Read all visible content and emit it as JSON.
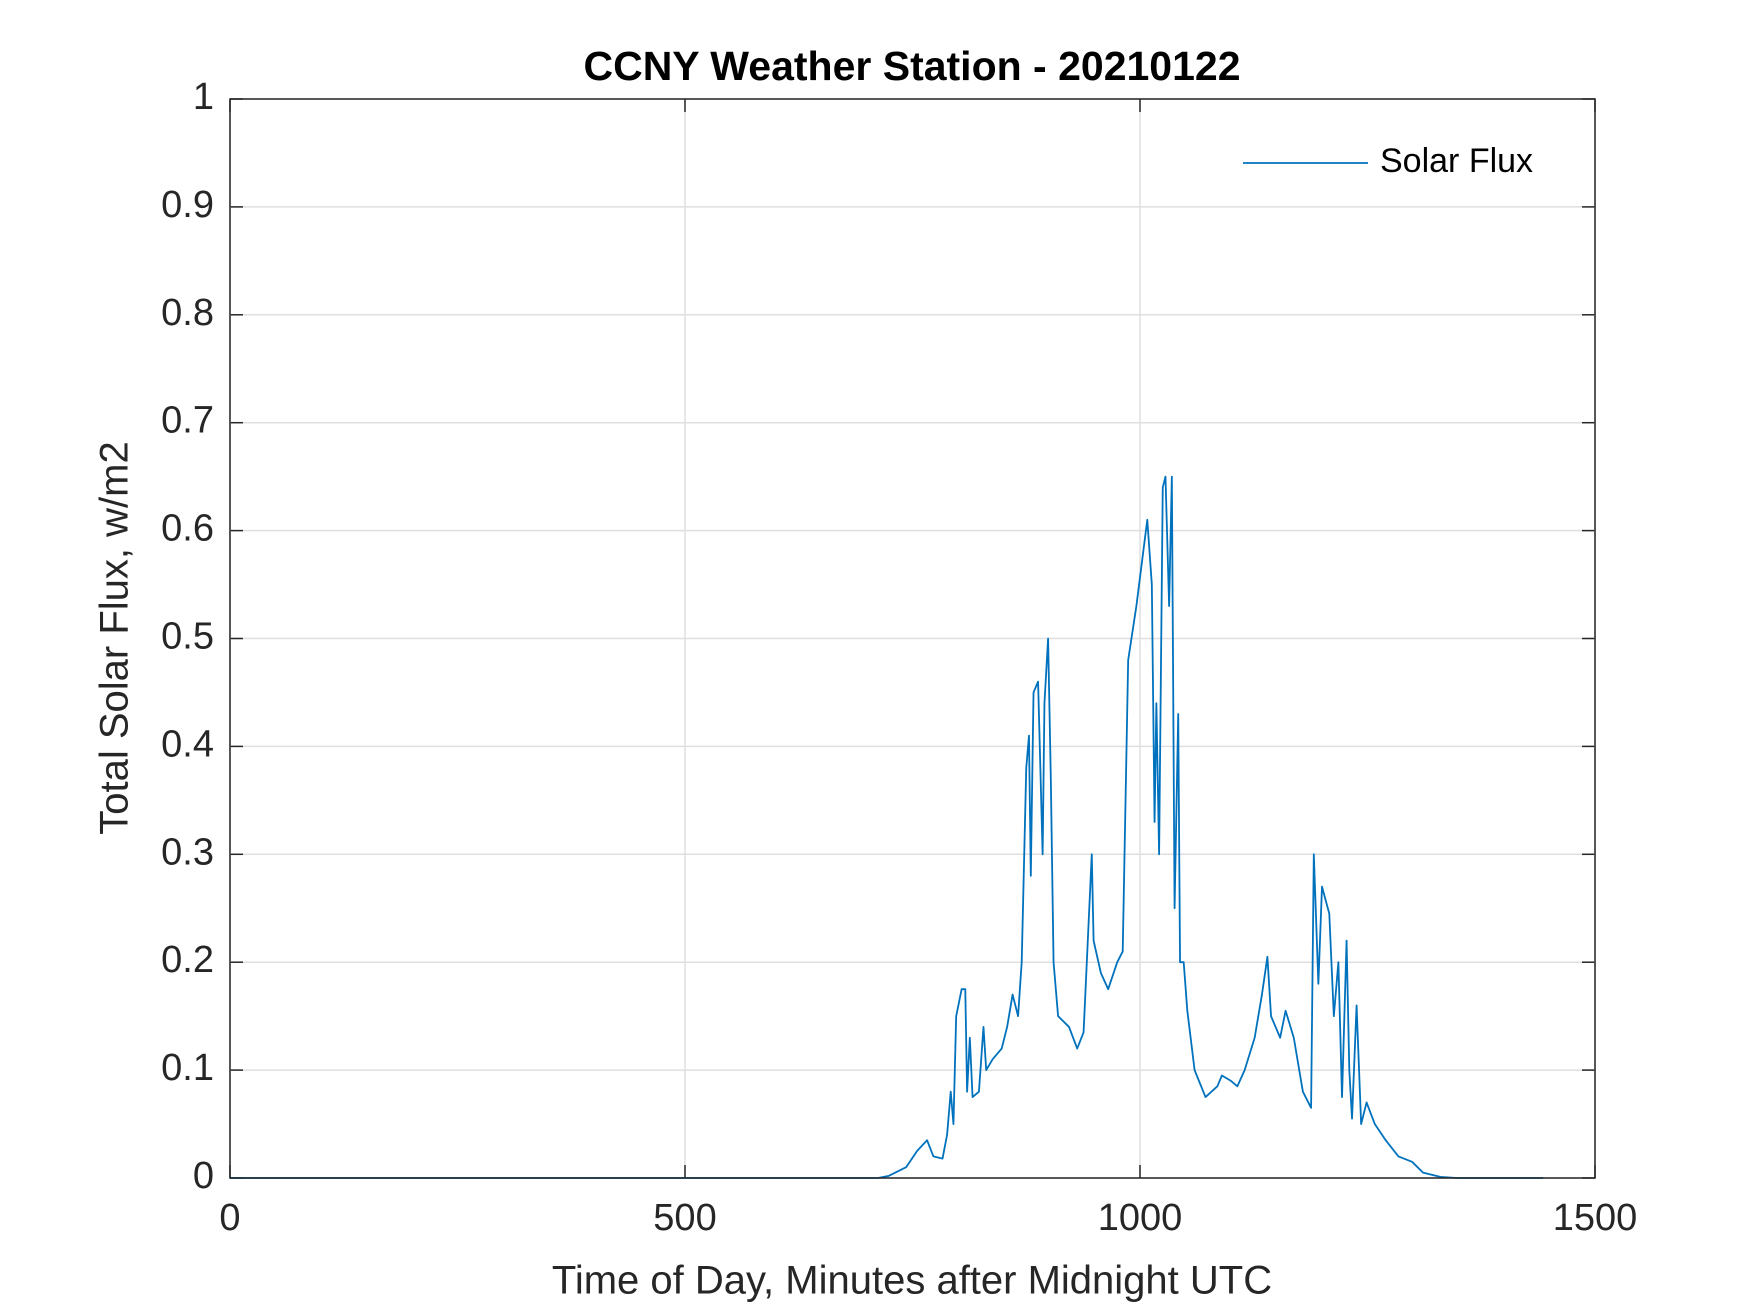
{
  "chart_data": {
    "type": "line",
    "title": "CCNY Weather Station - 20210122",
    "xlabel": "Time of Day, Minutes after Midnight UTC",
    "ylabel": "Total Solar Flux, w/m2",
    "xlim": [
      0,
      1500
    ],
    "xticks": [
      0,
      500,
      1000,
      1500
    ],
    "ylim": [
      0,
      1
    ],
    "yticks": [
      0,
      0.1,
      0.2,
      0.3,
      0.4,
      0.5,
      0.6,
      0.7,
      0.8,
      0.9,
      1
    ],
    "grid": true,
    "legend": "upper right",
    "x": [
      0,
      712,
      724,
      743,
      755,
      766,
      773,
      783,
      788,
      792,
      795,
      798,
      804,
      808,
      810,
      813,
      816,
      823,
      828,
      831,
      838,
      848,
      854,
      860,
      866,
      870,
      875,
      878,
      880,
      883,
      888,
      893,
      895,
      899,
      902,
      905,
      910,
      922,
      931,
      938,
      947,
      949,
      957,
      965,
      975,
      981,
      987,
      996,
      1002,
      1008,
      1013,
      1016,
      1018,
      1021,
      1025,
      1028,
      1032,
      1035,
      1038,
      1042,
      1044,
      1048,
      1052,
      1060,
      1072,
      1085,
      1090,
      1100,
      1107,
      1115,
      1126,
      1134,
      1140,
      1144,
      1154,
      1160,
      1169,
      1179,
      1188,
      1191,
      1196,
      1200,
      1208,
      1213,
      1218,
      1222,
      1227,
      1230,
      1233,
      1238,
      1243,
      1249,
      1258,
      1270,
      1284,
      1299,
      1311,
      1330,
      1348,
      1443
    ],
    "series": [
      {
        "name": "Solar Flux",
        "color": "#0072bd",
        "values": [
          0,
          0,
          0.002,
          0.01,
          0.025,
          0.035,
          0.02,
          0.018,
          0.04,
          0.08,
          0.05,
          0.15,
          0.175,
          0.175,
          0.08,
          0.13,
          0.075,
          0.08,
          0.14,
          0.1,
          0.11,
          0.12,
          0.14,
          0.17,
          0.15,
          0.2,
          0.38,
          0.41,
          0.28,
          0.45,
          0.46,
          0.3,
          0.44,
          0.5,
          0.37,
          0.2,
          0.15,
          0.14,
          0.12,
          0.135,
          0.3,
          0.22,
          0.19,
          0.175,
          0.2,
          0.21,
          0.48,
          0.53,
          0.57,
          0.61,
          0.55,
          0.33,
          0.44,
          0.3,
          0.64,
          0.65,
          0.53,
          0.65,
          0.25,
          0.43,
          0.2,
          0.2,
          0.155,
          0.1,
          0.075,
          0.085,
          0.095,
          0.09,
          0.085,
          0.1,
          0.13,
          0.17,
          0.205,
          0.15,
          0.13,
          0.155,
          0.13,
          0.08,
          0.065,
          0.3,
          0.18,
          0.27,
          0.245,
          0.15,
          0.2,
          0.075,
          0.22,
          0.1,
          0.055,
          0.16,
          0.05,
          0.07,
          0.05,
          0.035,
          0.02,
          0.015,
          0.005,
          0.001,
          0,
          0
        ]
      }
    ]
  }
}
